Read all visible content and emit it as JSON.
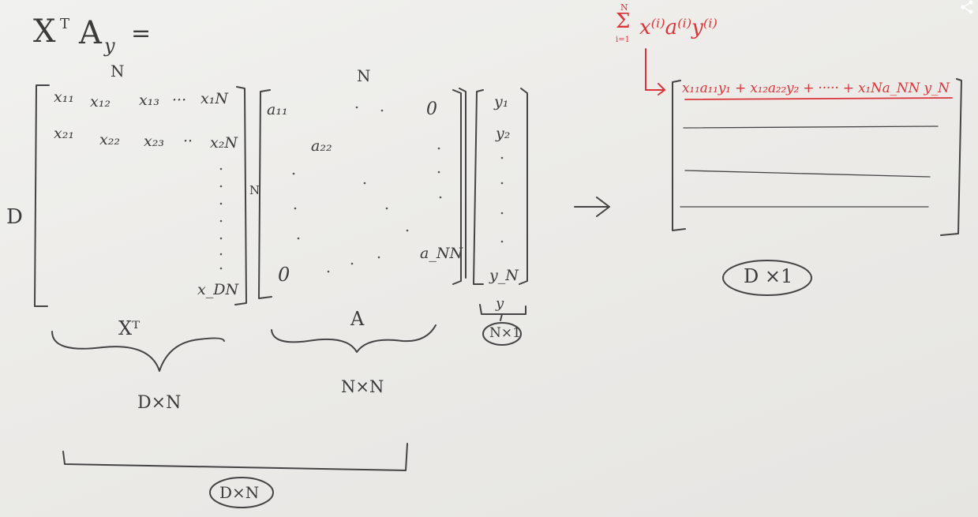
{
  "equation": {
    "lhs": "X",
    "transpose": "T",
    "mid": "A",
    "y_sub": "y",
    "equals": "="
  },
  "matrix_x": {
    "col_label": "N",
    "row_label": "D",
    "r1": [
      "x₁₁",
      "x₁₂",
      "x₁₃",
      "···",
      "x₁N"
    ],
    "r2": [
      "x₂₁",
      "x₂₂",
      "x₂₃",
      "··",
      "x₂N"
    ],
    "last": "x_DN",
    "brace_label": "Xᵀ",
    "dims": "D×N"
  },
  "matrix_a": {
    "col_label": "N",
    "row_label": "N",
    "a11": "a₁₁",
    "a22": "a₂₂",
    "ann": "a_NN",
    "zero_tr": "0",
    "zero_bl": "0",
    "brace_label": "A",
    "dims": "N×N"
  },
  "vector_y": {
    "y1": "y₁",
    "y2": "y₂",
    "yn": "y_N",
    "brace_label": "y",
    "dims": "N×1"
  },
  "product": {
    "dims": "D×N"
  },
  "arrow": "→",
  "result": {
    "sum_top": "N",
    "sum_symbol": "Σ",
    "sum_bottom": "i=1",
    "sum_terms": "x⁽ⁱ⁾a⁽ⁱ⁾y⁽ⁱ⁾",
    "row1": "x₁₁a₁₁y₁ + x₁₂a₂₂y₂ + ····· + x₁Na_NN y_N",
    "dims": "D ×1"
  },
  "colors": {
    "ink": "#3b3b3b",
    "red": "#d9353a",
    "paper": "#ecebe8"
  }
}
